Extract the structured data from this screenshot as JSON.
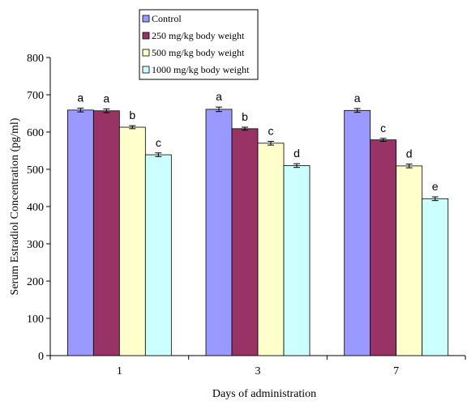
{
  "chart_data": {
    "type": "bar",
    "title": "",
    "xlabel": "Days of administration",
    "ylabel": "Serum Estradiol Concentration (pg/ml)",
    "ylim": [
      0,
      800
    ],
    "yticks": [
      0,
      100,
      200,
      300,
      400,
      500,
      600,
      700,
      800
    ],
    "categories": [
      "1",
      "3",
      "7"
    ],
    "grid": false,
    "legend_position": "top-left",
    "series": [
      {
        "name": "Control",
        "color": "#9999ff",
        "values": [
          659,
          661,
          658
        ],
        "errors": [
          5,
          6,
          5
        ],
        "letters": [
          "a",
          "a",
          "a"
        ]
      },
      {
        "name": "250 mg/kg body weight",
        "color": "#993366",
        "values": [
          657,
          609,
          579
        ],
        "errors": [
          5,
          4,
          4
        ],
        "letters": [
          "a",
          "b",
          "c"
        ]
      },
      {
        "name": "500 mg/kg body weight",
        "color": "#ffffcc",
        "values": [
          613,
          570,
          509
        ],
        "errors": [
          4,
          5,
          5
        ],
        "letters": [
          "b",
          "c",
          "d"
        ]
      },
      {
        "name": "1000 mg/kg body weight",
        "color": "#ccffff",
        "values": [
          539,
          510,
          421
        ],
        "errors": [
          5,
          5,
          5
        ],
        "letters": [
          "c",
          "d",
          "e"
        ]
      }
    ]
  }
}
